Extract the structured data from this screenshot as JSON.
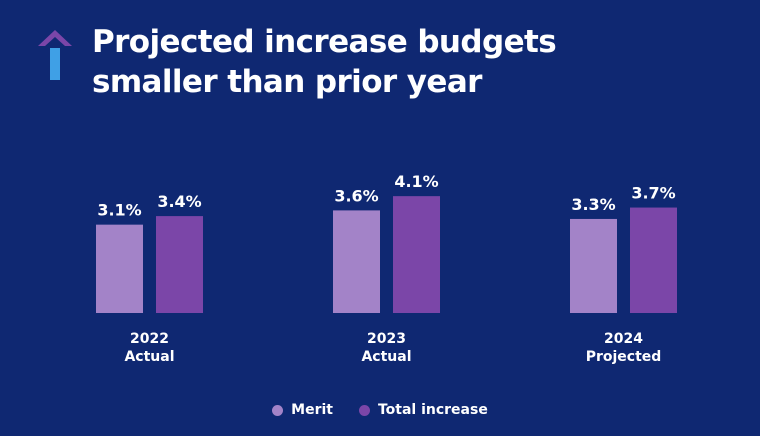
{
  "title_lines": [
    "Projected increase budgets",
    "smaller than prior year"
  ],
  "colors": {
    "background": "#0f2872",
    "merit": "#a383c8",
    "total": "#7b46a8",
    "arrow_top": "#7b46a8",
    "arrow_stem": "#3fa0e6"
  },
  "icon": "up-arrow-icon",
  "chart_data": {
    "type": "bar",
    "categories": [
      [
        "2022",
        "Actual"
      ],
      [
        "2023",
        "Actual"
      ],
      [
        "2024",
        "Projected"
      ]
    ],
    "series": [
      {
        "name": "Merit",
        "values": [
          3.1,
          3.6,
          3.3
        ],
        "labels": [
          "3.1%",
          "3.6%",
          "3.3%"
        ]
      },
      {
        "name": "Total increase",
        "values": [
          3.4,
          4.1,
          3.7
        ],
        "labels": [
          "3.4%",
          "4.1%",
          "3.7%"
        ]
      }
    ],
    "legend_position": "bottom-center",
    "grid": false
  }
}
